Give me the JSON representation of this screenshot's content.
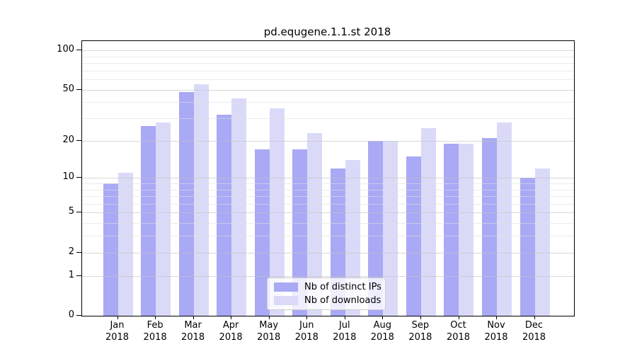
{
  "chart_data": {
    "type": "bar",
    "title": "pd.equgene.1.1.st 2018",
    "categories": [
      "Jan 2018",
      "Feb 2018",
      "Mar 2018",
      "Apr 2018",
      "May 2018",
      "Jun 2018",
      "Jul 2018",
      "Aug 2018",
      "Sep 2018",
      "Oct 2018",
      "Nov 2018",
      "Dec 2018"
    ],
    "series": [
      {
        "name": "Nb of distinct IPs",
        "color": "#a9a9f5",
        "values": [
          9,
          26,
          48,
          32,
          17,
          17,
          12,
          20,
          15,
          19,
          21,
          10
        ]
      },
      {
        "name": "Nb of downloads",
        "color": "#dadaf8",
        "values": [
          11,
          28,
          55,
          43,
          36,
          23,
          14,
          20,
          25,
          19,
          28,
          12
        ]
      }
    ],
    "xlabel": "",
    "ylabel": "",
    "y_axis": {
      "scale": "log1p",
      "tick_labels": [
        100,
        50,
        20,
        10,
        5,
        2,
        1,
        0
      ],
      "minor_gridlines": [
        3,
        4,
        6,
        7,
        8,
        9,
        30,
        40,
        60,
        70,
        80,
        90
      ],
      "ylim": [
        0,
        117
      ]
    },
    "grid": true,
    "legend": {
      "position": "bottom-center",
      "entries": [
        "Nb of distinct IPs",
        "Nb of downloads"
      ]
    }
  }
}
